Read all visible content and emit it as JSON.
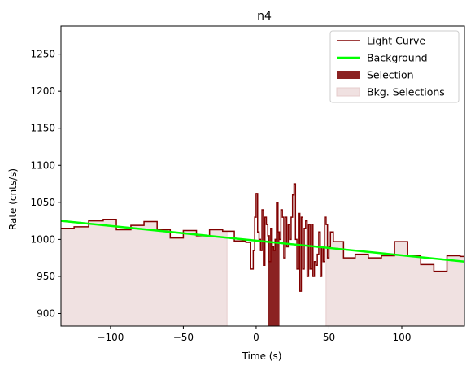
{
  "chart_data": {
    "type": "line",
    "title": "n4",
    "xlabel": "Time (s)",
    "ylabel": "Rate (cnts/s)",
    "xlim": [
      -134,
      143
    ],
    "ylim": [
      883,
      1288
    ],
    "xticks": [
      -100,
      -50,
      0,
      50,
      100
    ],
    "yticks": [
      900,
      950,
      1000,
      1050,
      1100,
      1150,
      1200,
      1250
    ],
    "legend_position": "top-right",
    "grid": false,
    "colors": {
      "light_curve": "#800000",
      "background": "#00ff00",
      "selection": "#8b2222",
      "bkg_selection": "#f0e1e1",
      "bkg_selection_edge": "#e6cccc"
    },
    "legend": [
      "Light Curve",
      "Background",
      "Selection",
      "Bkg. Selections"
    ],
    "background_line": {
      "x": [
        -134,
        143
      ],
      "y": [
        1025,
        970
      ]
    },
    "selection": {
      "x": [
        8,
        16
      ]
    },
    "bkg_selections": [
      {
        "x": [
          -134,
          -20
        ]
      },
      {
        "x": [
          48,
          143
        ]
      }
    ],
    "light_curve": {
      "x": [
        -134,
        -125,
        -115,
        -105,
        -96,
        -86,
        -77,
        -68,
        -59,
        -50,
        -41,
        -32,
        -23,
        -15,
        -7,
        -4,
        -2,
        -1,
        0,
        1,
        2,
        3,
        4,
        5,
        6,
        7,
        8,
        9,
        10,
        11,
        12,
        13,
        14,
        15,
        16,
        17,
        18,
        19,
        20,
        21,
        22,
        23,
        24,
        25,
        26,
        27,
        28,
        29,
        30,
        31,
        32,
        33,
        34,
        35,
        36,
        37,
        38,
        39,
        40,
        41,
        42,
        43,
        44,
        45,
        46,
        47,
        48,
        49,
        50,
        51,
        53,
        60,
        68,
        77,
        86,
        95,
        104,
        113,
        122,
        131,
        140,
        143
      ],
      "y": [
        1015,
        1017,
        1025,
        1027,
        1013,
        1019,
        1024,
        1013,
        1002,
        1012,
        1005,
        1013,
        1011,
        998,
        996,
        960,
        985,
        1030,
        1062,
        1010,
        1000,
        985,
        1040,
        965,
        1030,
        1020,
        1005,
        970,
        1015,
        990,
        985,
        1000,
        1050,
        1010,
        1000,
        1040,
        1030,
        975,
        1030,
        990,
        1020,
        1000,
        1030,
        1060,
        1075,
        1000,
        960,
        1035,
        930,
        1030,
        960,
        1015,
        1025,
        950,
        1020,
        960,
        1020,
        950,
        970,
        965,
        980,
        1010,
        950,
        990,
        970,
        1030,
        1020,
        975,
        990,
        1010,
        997,
        975,
        980,
        975,
        978,
        997,
        978,
        966,
        957,
        978,
        977,
        977
      ]
    }
  }
}
